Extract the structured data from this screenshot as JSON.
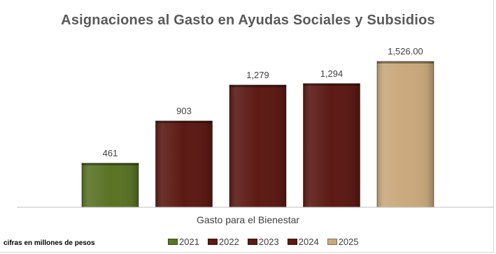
{
  "chart_data": {
    "type": "bar",
    "title": "Asignaciones al Gasto en Ayudas Sociales y Subsidios",
    "category": "Gasto para el Bienestar",
    "xlabel": "Gasto para el Bienestar",
    "note": "cifras en millones de pesos",
    "series": [
      {
        "name": "2021",
        "value": 461,
        "label": "461",
        "color": "#5a7326"
      },
      {
        "name": "2022",
        "value": 903,
        "label": "903",
        "color": "#5c1a14"
      },
      {
        "name": "2023",
        "value": 1279,
        "label": "1,279",
        "color": "#5c1a14"
      },
      {
        "name": "2024",
        "value": 1294,
        "label": "1,294",
        "color": "#5c1a14"
      },
      {
        "name": "2025",
        "value": 1526,
        "label": "1,526.00",
        "color": "#c9a97d"
      }
    ],
    "ylim": [
      0,
      1760
    ],
    "grid": false,
    "legend_position": "bottom"
  }
}
